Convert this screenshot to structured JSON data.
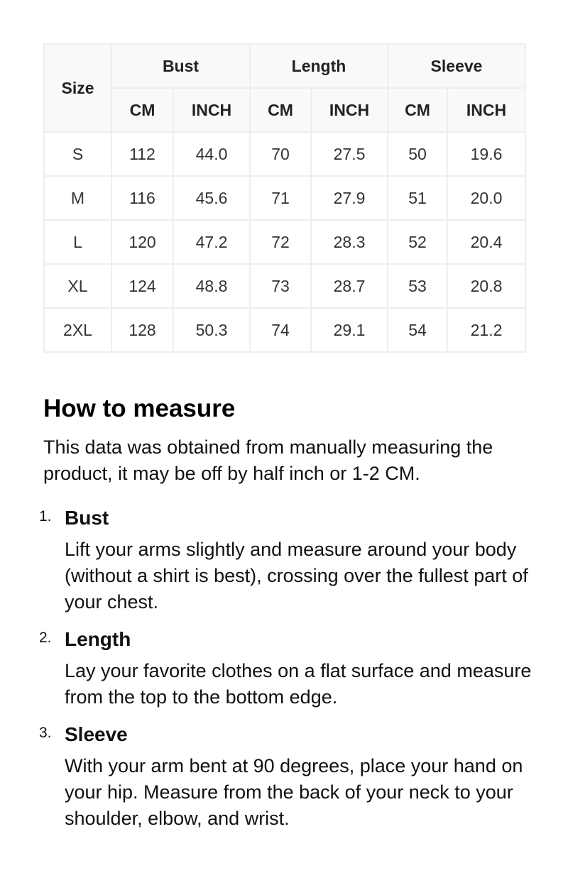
{
  "table": {
    "size_label": "Size",
    "groups": [
      "Bust",
      "Length",
      "Sleeve"
    ],
    "units": [
      "CM",
      "INCH",
      "CM",
      "INCH",
      "CM",
      "INCH"
    ],
    "rows": [
      [
        "S",
        "112",
        "44.0",
        "70",
        "27.5",
        "50",
        "19.6"
      ],
      [
        "M",
        "116",
        "45.6",
        "71",
        "27.9",
        "51",
        "20.0"
      ],
      [
        "L",
        "120",
        "47.2",
        "72",
        "28.3",
        "52",
        "20.4"
      ],
      [
        "XL",
        "124",
        "48.8",
        "73",
        "28.7",
        "53",
        "20.8"
      ],
      [
        "2XL",
        "128",
        "50.3",
        "74",
        "29.1",
        "54",
        "21.2"
      ]
    ]
  },
  "guide": {
    "title": "How to measure",
    "intro": "This data was obtained from manually measuring the product, it may be off by half inch or 1-2 CM.",
    "items": [
      {
        "num": "1.",
        "title": "Bust",
        "desc": "Lift your arms slightly and measure around your body (without a shirt is best), crossing over the fullest part of your chest."
      },
      {
        "num": "2.",
        "title": "Length",
        "desc": "Lay your favorite clothes on a flat surface and measure from the top to the bottom edge."
      },
      {
        "num": "3.",
        "title": "Sleeve",
        "desc": "With your arm bent at 90 degrees, place your hand on your hip. Measure from the back of your neck to your shoulder, elbow, and wrist."
      }
    ]
  }
}
